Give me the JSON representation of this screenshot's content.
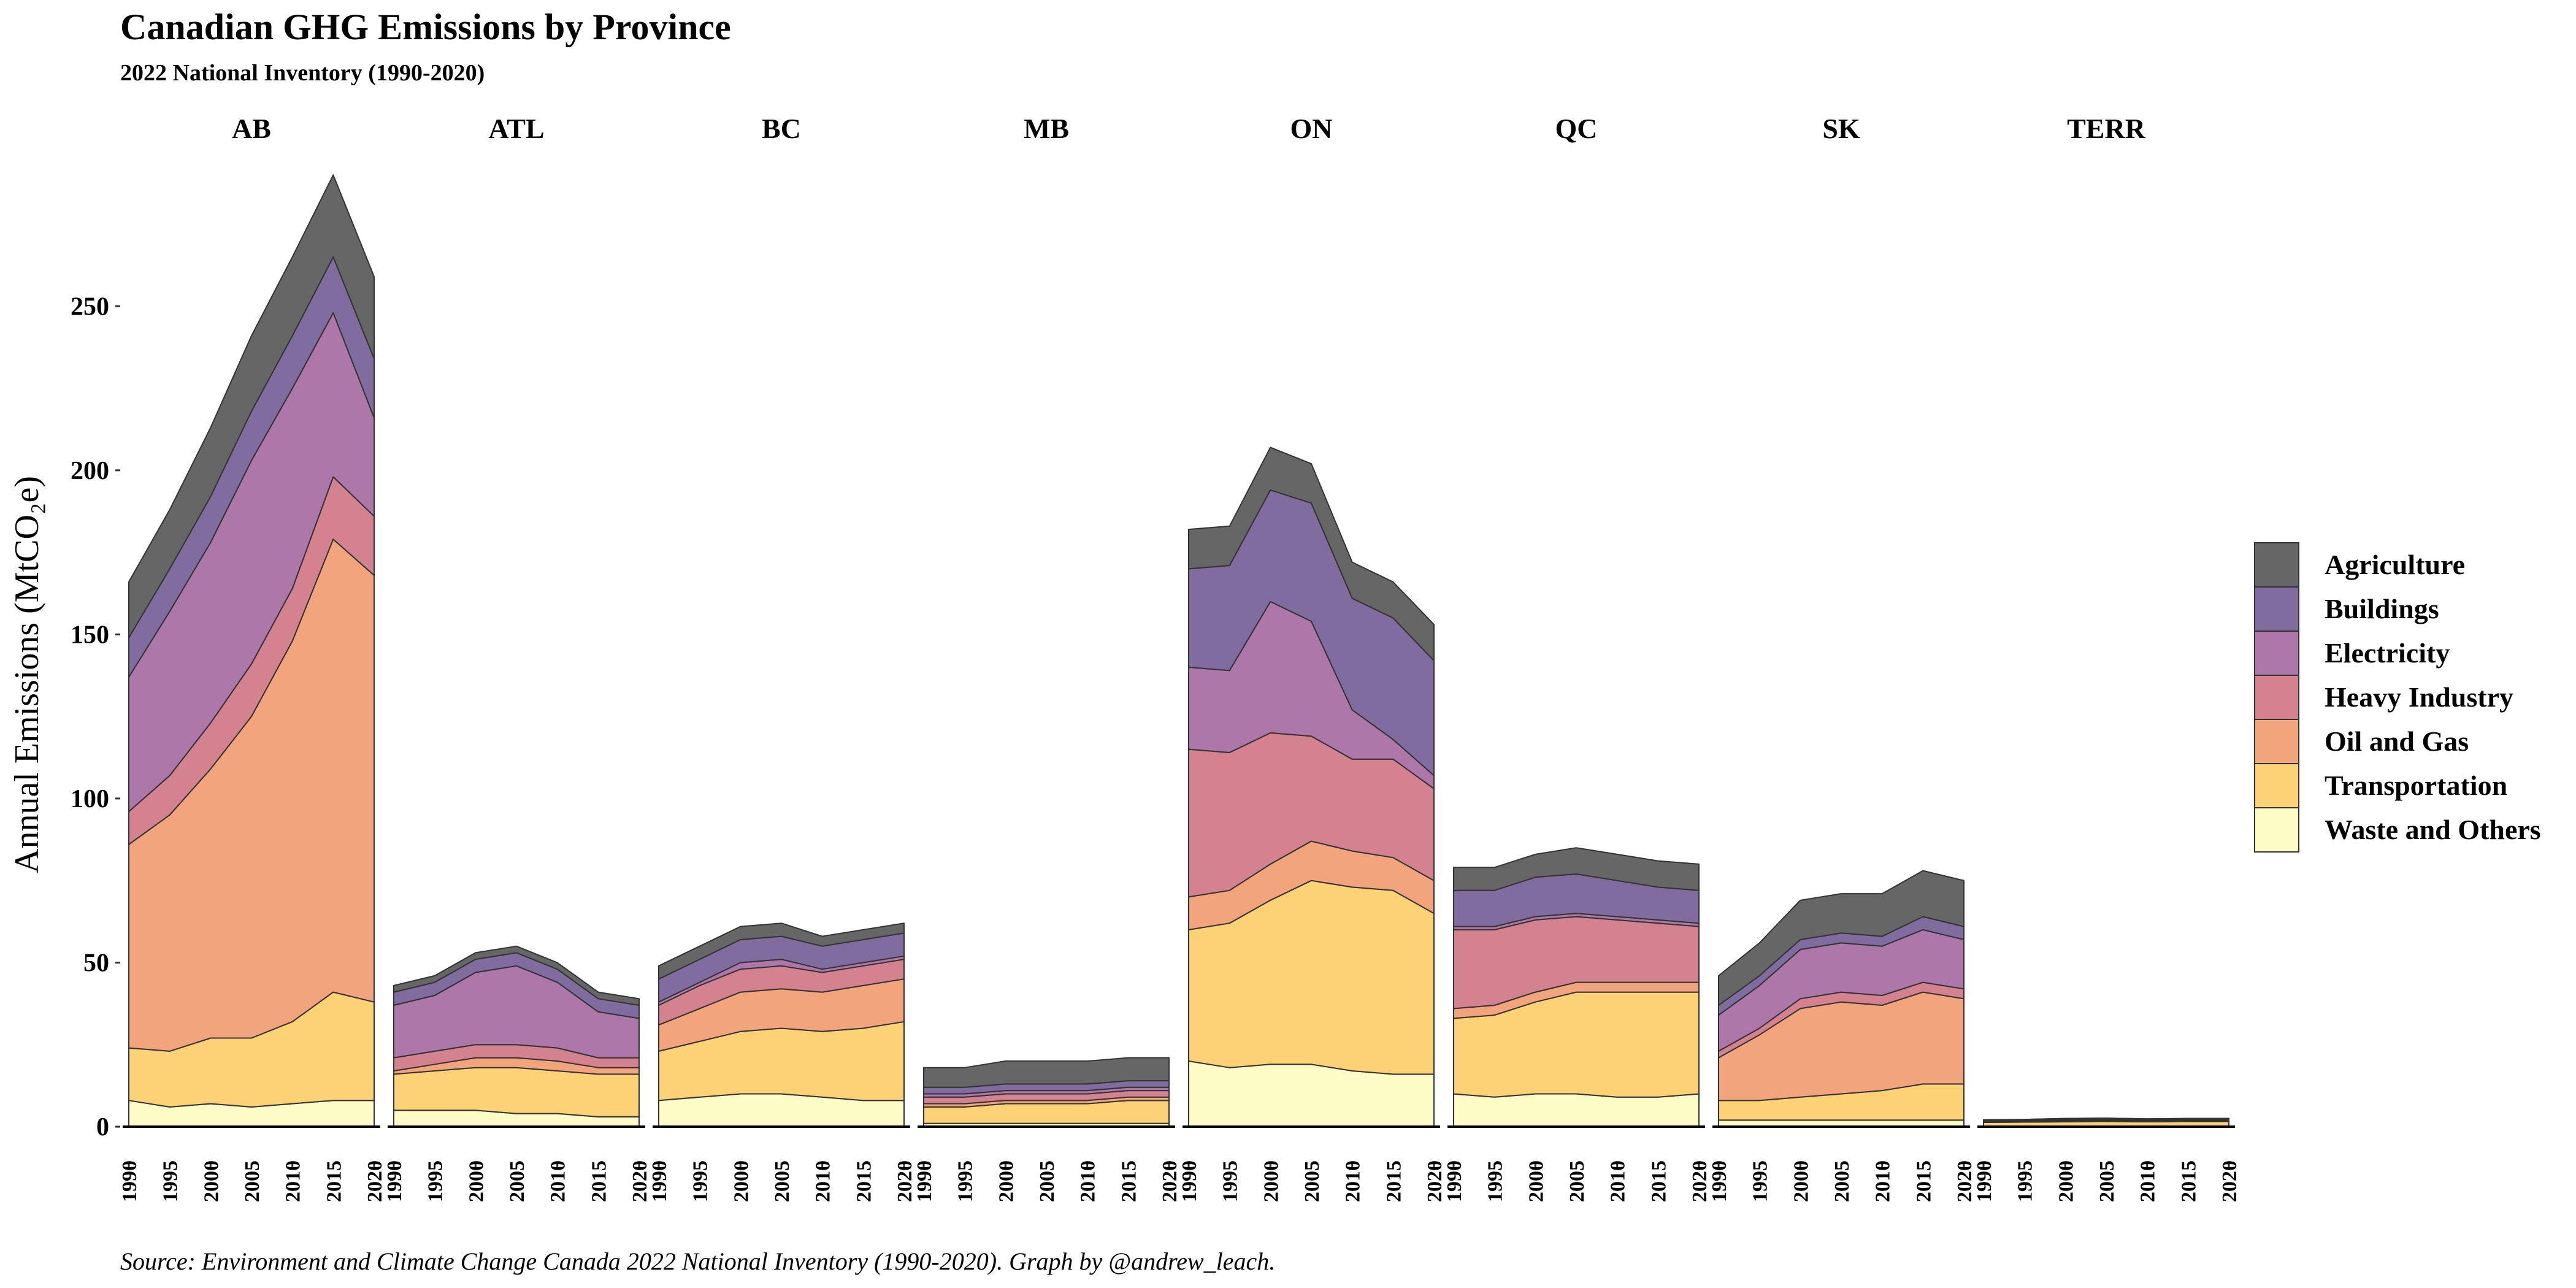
{
  "chart_data": {
    "type": "area",
    "title": "Canadian GHG Emissions by Province",
    "subtitle": "2022 National Inventory (1990-2020)",
    "caption": "Source: Environment and Climate Change Canada 2022 National Inventory (1990-2020). Graph by @andrew_leach.",
    "ylabel": "Annual Emissions (MtCO₂e)",
    "ylim": [
      0,
      285
    ],
    "yticks": [
      0,
      50,
      100,
      150,
      200,
      250
    ],
    "x_ticks": [
      1990,
      1995,
      2000,
      2005,
      2010,
      2015,
      2020
    ],
    "stacked": true,
    "legend_position": "right",
    "sectors": [
      "Agriculture",
      "Buildings",
      "Electricity",
      "Heavy Industry",
      "Oil and Gas",
      "Transportation",
      "Waste and Others"
    ],
    "colors": {
      "Agriculture": "#666666",
      "Buildings": "#806c9e",
      "Electricity": "#ad78a9",
      "Heavy Industry": "#d4828f",
      "Oil and Gas": "#f2a47d",
      "Transportation": "#fdd277",
      "Waste and Others": "#fdfcc6"
    },
    "stack_order_bottom_to_top": [
      "Waste and Others",
      "Transportation",
      "Oil and Gas",
      "Heavy Industry",
      "Electricity",
      "Buildings",
      "Agriculture"
    ],
    "panels": [
      {
        "name": "AB",
        "x": [
          1990,
          1995,
          2000,
          2005,
          2010,
          2015,
          2020
        ],
        "series": {
          "Waste and Others": [
            8,
            6,
            7,
            6,
            7,
            8,
            8
          ],
          "Transportation": [
            16,
            17,
            20,
            21,
            25,
            33,
            30
          ],
          "Oil and Gas": [
            62,
            72,
            82,
            98,
            116,
            138,
            130
          ],
          "Heavy Industry": [
            10,
            12,
            14,
            16,
            16,
            19,
            18
          ],
          "Electricity": [
            41,
            50,
            55,
            62,
            61,
            50,
            30
          ],
          "Buildings": [
            12,
            13,
            14,
            15,
            16,
            17,
            18
          ],
          "Agriculture": [
            17,
            18,
            21,
            23,
            24,
            25,
            25
          ]
        }
      },
      {
        "name": "ATL",
        "x": [
          1990,
          1995,
          2000,
          2005,
          2010,
          2015,
          2020
        ],
        "series": {
          "Waste and Others": [
            5,
            5,
            5,
            4,
            4,
            3,
            3
          ],
          "Transportation": [
            11,
            12,
            13,
            14,
            13,
            13,
            13
          ],
          "Oil and Gas": [
            1,
            2,
            3,
            3,
            3,
            2,
            2
          ],
          "Heavy Industry": [
            4,
            4,
            4,
            4,
            4,
            3,
            3
          ],
          "Electricity": [
            16,
            17,
            22,
            24,
            20,
            14,
            12
          ],
          "Buildings": [
            4,
            4,
            4,
            4,
            4,
            4,
            4
          ],
          "Agriculture": [
            2,
            2,
            2,
            2,
            2,
            2,
            2
          ]
        }
      },
      {
        "name": "BC",
        "x": [
          1990,
          1995,
          2000,
          2005,
          2010,
          2015,
          2020
        ],
        "series": {
          "Waste and Others": [
            8,
            9,
            10,
            10,
            9,
            8,
            8
          ],
          "Transportation": [
            15,
            17,
            19,
            20,
            20,
            22,
            24
          ],
          "Oil and Gas": [
            8,
            10,
            12,
            12,
            12,
            13,
            13
          ],
          "Heavy Industry": [
            6,
            7,
            7,
            7,
            6,
            6,
            6
          ],
          "Electricity": [
            1,
            1,
            2,
            2,
            1,
            1,
            1
          ],
          "Buildings": [
            7,
            7,
            7,
            7,
            7,
            7,
            7
          ],
          "Agriculture": [
            4,
            4,
            4,
            4,
            3,
            3,
            3
          ]
        }
      },
      {
        "name": "MB",
        "x": [
          1990,
          1995,
          2000,
          2005,
          2010,
          2015,
          2020
        ],
        "series": {
          "Waste and Others": [
            1,
            1,
            1,
            1,
            1,
            1,
            1
          ],
          "Transportation": [
            5,
            5,
            6,
            6,
            6,
            7,
            7
          ],
          "Oil and Gas": [
            1,
            1,
            1,
            1,
            1,
            1,
            1
          ],
          "Heavy Industry": [
            2,
            2,
            2,
            2,
            2,
            2,
            2
          ],
          "Electricity": [
            1,
            1,
            1,
            1,
            1,
            1,
            1
          ],
          "Buildings": [
            2,
            2,
            2,
            2,
            2,
            2,
            2
          ],
          "Agriculture": [
            6,
            6,
            7,
            7,
            7,
            7,
            7
          ]
        }
      },
      {
        "name": "ON",
        "x": [
          1990,
          1995,
          2000,
          2005,
          2010,
          2015,
          2020
        ],
        "series": {
          "Waste and Others": [
            20,
            18,
            19,
            19,
            17,
            16,
            16
          ],
          "Transportation": [
            40,
            44,
            50,
            56,
            56,
            56,
            49
          ],
          "Oil and Gas": [
            10,
            10,
            11,
            12,
            11,
            10,
            10
          ],
          "Heavy Industry": [
            45,
            42,
            40,
            32,
            28,
            30,
            28
          ],
          "Electricity": [
            25,
            25,
            40,
            35,
            15,
            6,
            4
          ],
          "Buildings": [
            30,
            32,
            34,
            36,
            34,
            37,
            35
          ],
          "Agriculture": [
            12,
            12,
            13,
            12,
            11,
            11,
            11
          ]
        }
      },
      {
        "name": "QC",
        "x": [
          1990,
          1995,
          2000,
          2005,
          2010,
          2015,
          2020
        ],
        "series": {
          "Waste and Others": [
            10,
            9,
            10,
            10,
            9,
            9,
            10
          ],
          "Transportation": [
            23,
            25,
            28,
            31,
            32,
            32,
            31
          ],
          "Oil and Gas": [
            3,
            3,
            3,
            3,
            3,
            3,
            3
          ],
          "Heavy Industry": [
            24,
            23,
            22,
            20,
            19,
            18,
            17
          ],
          "Electricity": [
            1,
            1,
            1,
            1,
            1,
            1,
            1
          ],
          "Buildings": [
            11,
            11,
            12,
            12,
            11,
            10,
            10
          ],
          "Agriculture": [
            7,
            7,
            7,
            8,
            8,
            8,
            8
          ]
        }
      },
      {
        "name": "SK",
        "x": [
          1990,
          1995,
          2000,
          2005,
          2010,
          2015,
          2020
        ],
        "series": {
          "Waste and Others": [
            2,
            2,
            2,
            2,
            2,
            2,
            2
          ],
          "Transportation": [
            6,
            6,
            7,
            8,
            9,
            11,
            11
          ],
          "Oil and Gas": [
            13,
            20,
            27,
            28,
            26,
            28,
            26
          ],
          "Heavy Industry": [
            2,
            2,
            3,
            3,
            3,
            3,
            3
          ],
          "Electricity": [
            11,
            13,
            15,
            15,
            15,
            16,
            15
          ],
          "Buildings": [
            3,
            3,
            3,
            3,
            3,
            4,
            4
          ],
          "Agriculture": [
            9,
            10,
            12,
            12,
            13,
            14,
            14
          ]
        }
      },
      {
        "name": "TERR",
        "x": [
          1990,
          1995,
          2000,
          2005,
          2010,
          2015,
          2020
        ],
        "series": {
          "Waste and Others": [
            0.1,
            0.1,
            0.1,
            0.1,
            0.1,
            0.1,
            0.1
          ],
          "Transportation": [
            1.2,
            1.3,
            1.4,
            1.5,
            1.4,
            1.5,
            1.5
          ],
          "Oil and Gas": [
            0.2,
            0.2,
            0.3,
            0.3,
            0.2,
            0.2,
            0.2
          ],
          "Heavy Industry": [
            0.1,
            0.1,
            0.1,
            0.1,
            0.1,
            0.1,
            0.1
          ],
          "Electricity": [
            0.3,
            0.3,
            0.3,
            0.3,
            0.3,
            0.3,
            0.3
          ],
          "Buildings": [
            0.2,
            0.2,
            0.3,
            0.3,
            0.3,
            0.3,
            0.3
          ],
          "Agriculture": [
            0,
            0,
            0,
            0,
            0,
            0,
            0
          ]
        }
      }
    ]
  }
}
